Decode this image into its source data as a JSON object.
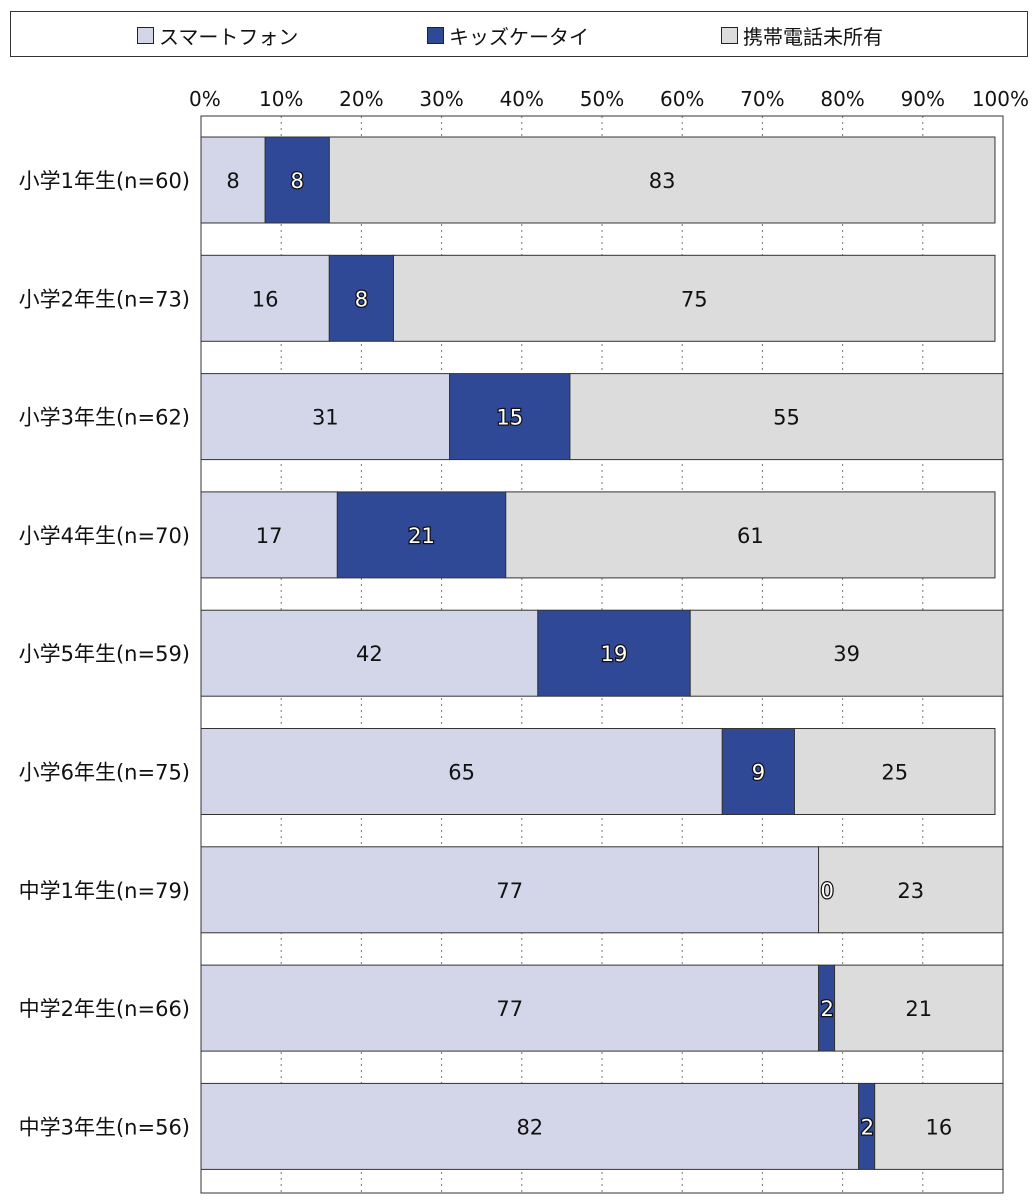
{
  "chart_data": {
    "type": "bar",
    "orientation": "horizontal",
    "stacked": true,
    "categories": [
      "小学1年生(n=60)",
      "小学2年生(n=73)",
      "小学3年生(n=62)",
      "小学4年生(n=70)",
      "小学5年生(n=59)",
      "小学6年生(n=75)",
      "中学1年生(n=79)",
      "中学2年生(n=66)",
      "中学3年生(n=56)"
    ],
    "series": [
      {
        "name": "スマートフォン",
        "color": "#d3d6e8",
        "label_color": "#111111",
        "values": [
          8,
          16,
          31,
          17,
          42,
          65,
          77,
          77,
          82
        ]
      },
      {
        "name": "キッズケータイ",
        "color": "#2f4996",
        "label_color": "#ffffff",
        "values": [
          8,
          8,
          15,
          21,
          19,
          9,
          0,
          2,
          2
        ]
      },
      {
        "name": "携帯電話未所有",
        "color": "#dcdcdc",
        "label_color": "#111111",
        "values": [
          83,
          75,
          55,
          61,
          39,
          25,
          23,
          21,
          16
        ]
      }
    ],
    "xlim": [
      0,
      100
    ],
    "xticks": [
      "0%",
      "10%",
      "20%",
      "30%",
      "40%",
      "50%",
      "60%",
      "70%",
      "80%",
      "90%",
      "100%"
    ],
    "grid": "vertical-dotted",
    "legend": "top"
  }
}
